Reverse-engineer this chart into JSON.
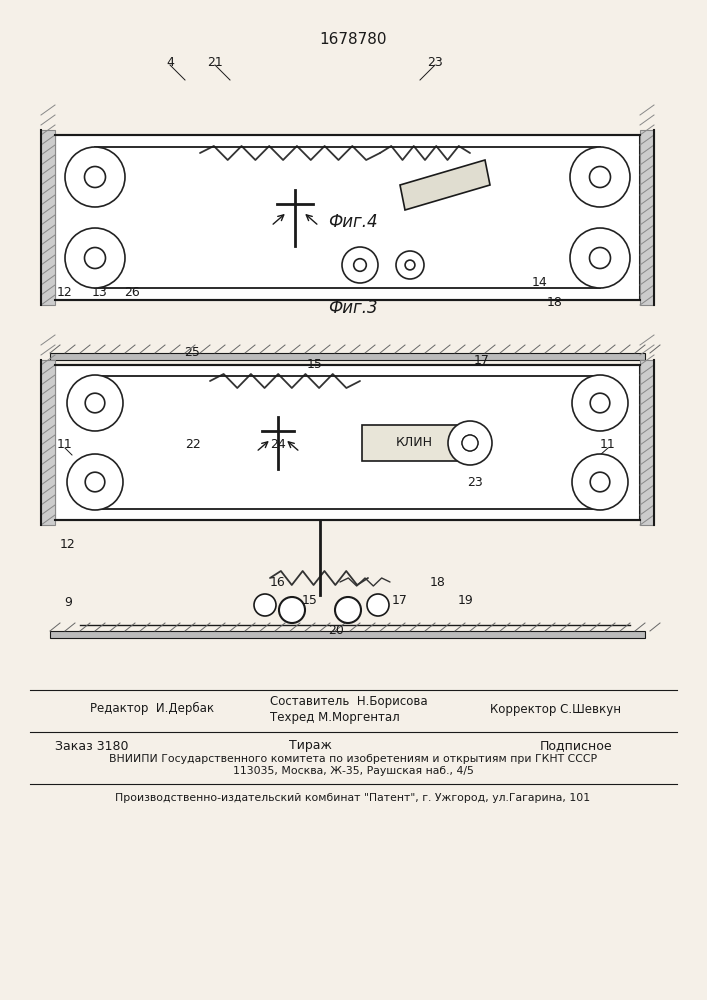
{
  "patent_number": "1678780",
  "fig3_label": "Фиг.3",
  "fig4_label": "Фиг.4",
  "editor_label": "Редактор  И.Дербак",
  "composer_label": "Составитель  Н.Борисова",
  "techred_label": "Техред М.Моргентал",
  "corrector_label": "Корректор С.Шевкун",
  "order_label": "Заказ 3180",
  "tirazh_label": "Тираж",
  "podpisnoe_label": "Подписное",
  "vniipи_line1": "ВНИИПИ Государственного комитета по изобретениям и открытиям при ГКНТ СССР",
  "vniipи_line2": "113035, Москва, Ж-35, Раушская наб., 4/5",
  "kombinat_line": "Производственно-издательский комбинат \"Патент\", г. Ужгород, ул.Гагарина, 101",
  "bg_color": "#f5f0e8",
  "line_color": "#1a1a1a"
}
